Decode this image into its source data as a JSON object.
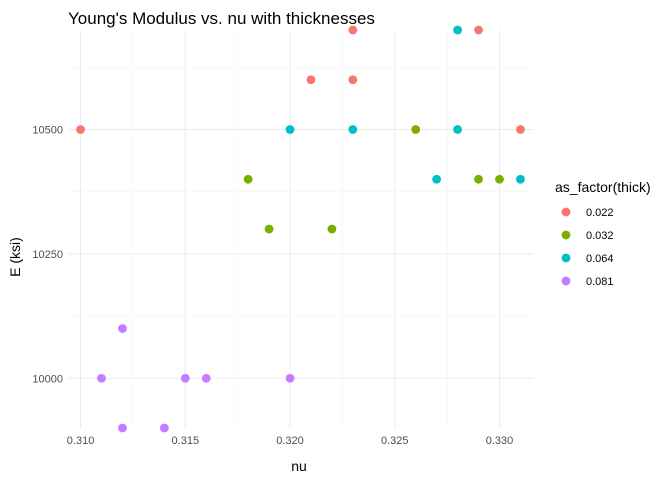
{
  "chart_data": {
    "type": "scatter",
    "title": "Young's Modulus vs. nu with thicknesses",
    "xlabel": "nu",
    "ylabel": "E (ksi)",
    "xlim": [
      0.3094,
      0.3316
    ],
    "ylim": [
      9900,
      10700
    ],
    "xticks": [
      {
        "value": 0.31,
        "label": "0.310"
      },
      {
        "value": 0.315,
        "label": "0.315"
      },
      {
        "value": 0.32,
        "label": "0.320"
      },
      {
        "value": 0.325,
        "label": "0.325"
      },
      {
        "value": 0.33,
        "label": "0.330"
      }
    ],
    "yticks": [
      {
        "value": 10000,
        "label": "10000"
      },
      {
        "value": 10250,
        "label": "10250"
      },
      {
        "value": 10500,
        "label": "10500"
      }
    ],
    "grid": true,
    "legend": {
      "title": "as_factor(thick)",
      "position": "right"
    },
    "series": [
      {
        "name": "0.022",
        "color": "#F8766D",
        "points": [
          {
            "x": 0.31,
            "y": 10500
          },
          {
            "x": 0.321,
            "y": 10600
          },
          {
            "x": 0.323,
            "y": 10600
          },
          {
            "x": 0.323,
            "y": 10700
          },
          {
            "x": 0.329,
            "y": 10700
          },
          {
            "x": 0.331,
            "y": 10500
          }
        ]
      },
      {
        "name": "0.032",
        "color": "#7CAE00",
        "points": [
          {
            "x": 0.318,
            "y": 10400
          },
          {
            "x": 0.319,
            "y": 10300
          },
          {
            "x": 0.322,
            "y": 10300
          },
          {
            "x": 0.326,
            "y": 10500
          },
          {
            "x": 0.329,
            "y": 10400
          },
          {
            "x": 0.33,
            "y": 10400
          }
        ]
      },
      {
        "name": "0.064",
        "color": "#00BFC4",
        "points": [
          {
            "x": 0.32,
            "y": 10500
          },
          {
            "x": 0.323,
            "y": 10500
          },
          {
            "x": 0.327,
            "y": 10400
          },
          {
            "x": 0.328,
            "y": 10500
          },
          {
            "x": 0.328,
            "y": 10700
          },
          {
            "x": 0.331,
            "y": 10400
          }
        ]
      },
      {
        "name": "0.081",
        "color": "#C77CFF",
        "points": [
          {
            "x": 0.311,
            "y": 10000
          },
          {
            "x": 0.312,
            "y": 10100
          },
          {
            "x": 0.312,
            "y": 9900
          },
          {
            "x": 0.314,
            "y": 9900
          },
          {
            "x": 0.315,
            "y": 10000
          },
          {
            "x": 0.316,
            "y": 10000
          },
          {
            "x": 0.32,
            "y": 10000
          }
        ]
      }
    ]
  }
}
